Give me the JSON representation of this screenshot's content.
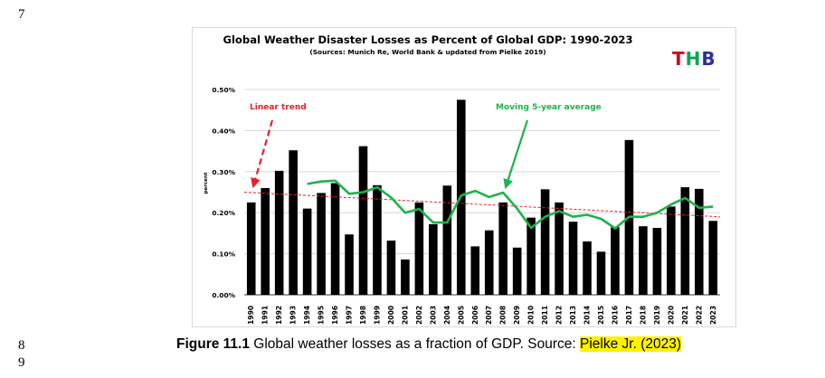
{
  "page": {
    "line_numbers": [
      "7",
      "8",
      "9"
    ],
    "caption": {
      "label": "Figure 11.1",
      "text": " Global weather losses as a fraction of GDP. Source: ",
      "source": "Pielke Jr. (2023)",
      "highlight_color": "#fff200"
    }
  },
  "logo": {
    "letters": [
      "T",
      "H",
      "B"
    ],
    "colors": [
      "#d6001c",
      "#00a651",
      "#2e3192"
    ]
  },
  "chart_data": {
    "type": "bar",
    "title": "Global Weather Disaster Losses as Percent of Global GDP: 1990-2023",
    "subtitle": "(Sources: Munich Re, World Bank & updated from Pielke 2019)",
    "xlabel": "",
    "ylabel": "percent",
    "ylim": [
      0,
      0.5
    ],
    "yticks": [
      "0.00%",
      "0.10%",
      "0.20%",
      "0.30%",
      "0.40%",
      "0.50%"
    ],
    "ytick_values": [
      0,
      0.1,
      0.2,
      0.3,
      0.4,
      0.5
    ],
    "grid": true,
    "categories": [
      "1990",
      "1991",
      "1992",
      "1993",
      "1994",
      "1995",
      "1996",
      "1997",
      "1998",
      "1999",
      "2000",
      "2001",
      "2002",
      "2003",
      "2004",
      "2005",
      "2006",
      "2007",
      "2008",
      "2009",
      "2010",
      "2011",
      "2012",
      "2013",
      "2014",
      "2015",
      "2016",
      "2017",
      "2018",
      "2019",
      "2020",
      "2021",
      "2022",
      "2023"
    ],
    "values": [
      0.225,
      0.26,
      0.302,
      0.352,
      0.21,
      0.248,
      0.272,
      0.147,
      0.362,
      0.267,
      0.132,
      0.086,
      0.225,
      0.172,
      0.266,
      0.475,
      0.118,
      0.157,
      0.225,
      0.115,
      0.188,
      0.257,
      0.225,
      0.178,
      0.13,
      0.105,
      0.165,
      0.377,
      0.167,
      0.163,
      0.215,
      0.262,
      0.258,
      0.18
    ],
    "bar_color": "#000000",
    "moving_average": {
      "name": "Moving 5-year average",
      "color": "#1db34b",
      "start_index": 4,
      "values": [
        0.27,
        0.276,
        0.278,
        0.246,
        0.25,
        0.262,
        0.237,
        0.2,
        0.209,
        0.176,
        0.176,
        0.242,
        0.253,
        0.238,
        0.249,
        0.21,
        0.163,
        0.19,
        0.204,
        0.19,
        0.195,
        0.185,
        0.162,
        0.19,
        0.19,
        0.2,
        0.22,
        0.236,
        0.212,
        0.215
      ]
    },
    "trend": {
      "name": "Linear trend",
      "color": "#e8202a",
      "start": 0.25,
      "end": 0.19
    },
    "annotations": [
      {
        "text": "Linear trend",
        "color": "#e8202a"
      },
      {
        "text": "Moving 5-year average",
        "color": "#1db34b"
      }
    ]
  }
}
